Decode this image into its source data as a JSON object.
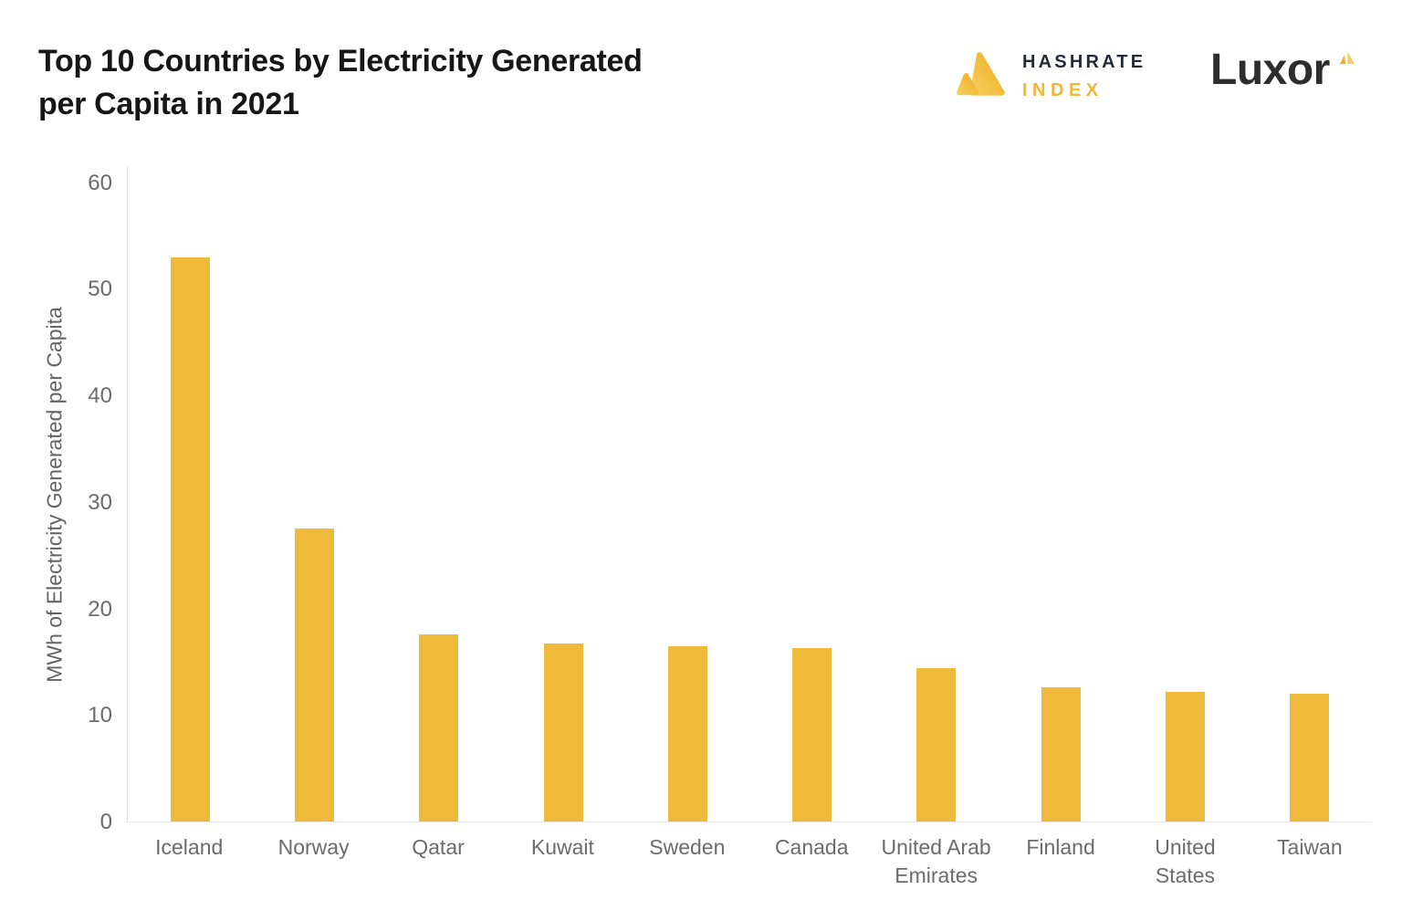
{
  "header": {
    "title_lines": [
      "Top 10 Countries by Electricity Generated",
      "per Capita in 2021"
    ],
    "logos": {
      "hashrate": {
        "line1": "HASHRATE",
        "line2": "INDEX"
      },
      "luxor": {
        "text": "Luxor"
      }
    }
  },
  "chart_data": {
    "type": "bar",
    "title": "Top 10 Countries by Electricity Generated per Capita in 2021",
    "xlabel": "",
    "ylabel": "MWh of Electricity Generated per Capita",
    "categories": [
      "Iceland",
      "Norway",
      "Qatar",
      "Kuwait",
      "Sweden",
      "Canada",
      "United Arab Emirates",
      "Finland",
      "United States",
      "Taiwan"
    ],
    "label_lines": [
      [
        "Iceland"
      ],
      [
        "Norway"
      ],
      [
        "Qatar"
      ],
      [
        "Kuwait"
      ],
      [
        "Sweden"
      ],
      [
        "Canada"
      ],
      [
        "United Arab",
        "Emirates"
      ],
      [
        "Finland"
      ],
      [
        "United States"
      ],
      [
        "Taiwan"
      ]
    ],
    "values": [
      53,
      27.5,
      17.6,
      16.7,
      16.5,
      16.3,
      14.4,
      12.6,
      12.2,
      12
    ],
    "yticks": [
      0,
      10,
      20,
      30,
      40,
      50,
      60
    ],
    "ylim": [
      0,
      60
    ],
    "grid": false,
    "legend": null,
    "bar_color": "#EFB93A"
  },
  "colors": {
    "background": "#ffffff",
    "title_text": "#161616",
    "axis_text": "#6b6b6b",
    "axis_line": "#dcdcdc",
    "brand_yellow": "#F2B637",
    "brand_dark": "#252b35"
  }
}
